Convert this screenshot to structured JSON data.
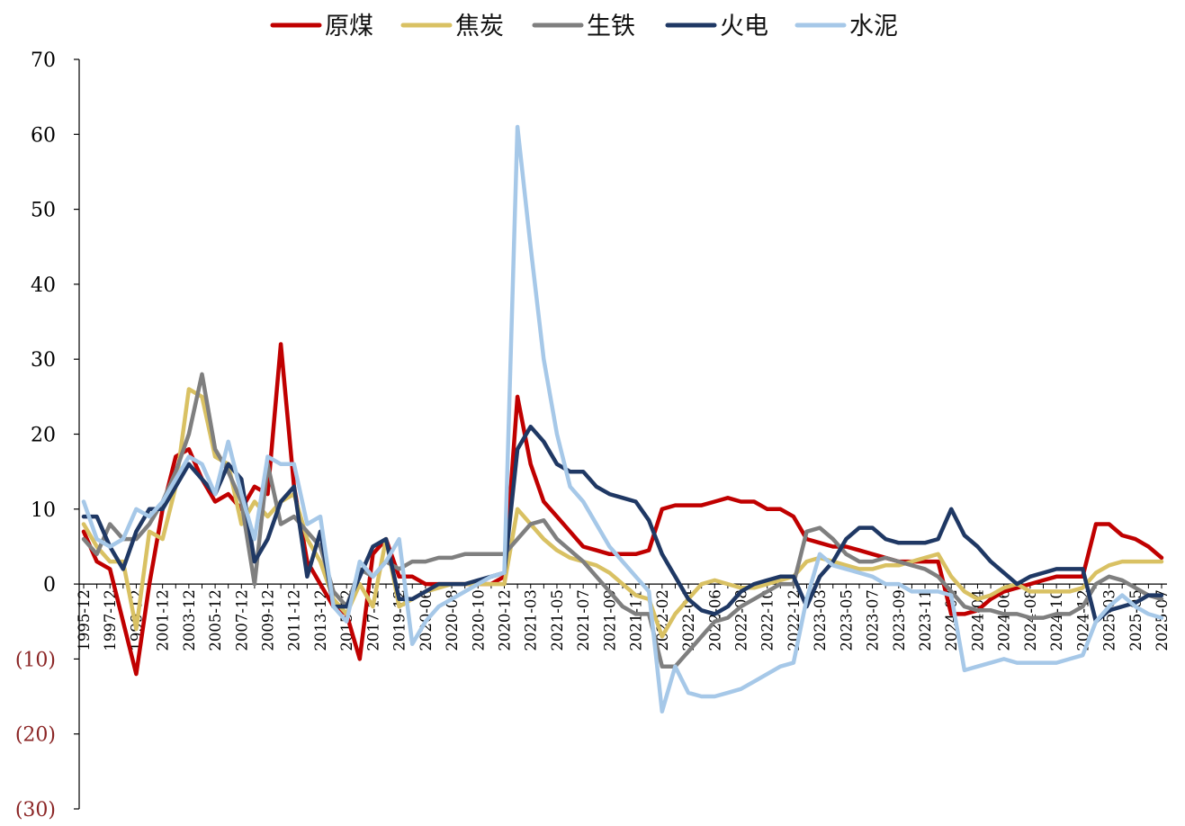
{
  "chart_data": {
    "type": "line",
    "title": "",
    "xlabel": "",
    "ylabel": "",
    "ylim": [
      -30,
      70
    ],
    "yticks": [
      70,
      60,
      50,
      40,
      30,
      20,
      10,
      0,
      -10,
      -20,
      -30
    ],
    "ytick_labels": [
      "70",
      "60",
      "50",
      "40",
      "30",
      "20",
      "10",
      "0",
      "(10)",
      "(20)",
      "(30)"
    ],
    "negative_label_color": "#8b2525",
    "grid": false,
    "legend_position": "top",
    "x": [
      "1995-12",
      "1996-12",
      "1997-12",
      "1998-12",
      "1999-12",
      "2000-12",
      "2001-12",
      "2002-12",
      "2003-12",
      "2004-12",
      "2005-12",
      "2006-12",
      "2007-12",
      "2008-12",
      "2009-12",
      "2010-12",
      "2011-12",
      "2012-12",
      "2013-12",
      "2014-12",
      "2015-12",
      "2016-12",
      "2017-12",
      "2018-12",
      "2019-12",
      "2020-04",
      "2020-06",
      "2020-07",
      "2020-08",
      "2020-09",
      "2020-10",
      "2020-11",
      "2020-12",
      "2021-01",
      "2021-03",
      "2021-04",
      "2021-05",
      "2021-06",
      "2021-07",
      "2021-08",
      "2021-09",
      "2021-10",
      "2021-11",
      "2021-12",
      "2022-02",
      "2022-03",
      "2022-04",
      "2022-05",
      "2022-06",
      "2022-07",
      "2022-08",
      "2022-09",
      "2022-10",
      "2022-11",
      "2022-12",
      "2023-02",
      "2023-03",
      "2023-04",
      "2023-05",
      "2023-06",
      "2023-07",
      "2023-08",
      "2023-09",
      "2023-10",
      "2023-11",
      "2023-12",
      "2024-02",
      "2024-03",
      "2024-04",
      "2024-05",
      "2024-06",
      "2024-07",
      "2024-08",
      "2024-09",
      "2024-10",
      "2024-11",
      "2024-12",
      "2025-02",
      "2025-03",
      "2025-04",
      "2025-05",
      "2025-06",
      "2025-07"
    ],
    "x_tick_labels": [
      "1995-12",
      "1997-12",
      "1999-12",
      "2001-12",
      "2003-12",
      "2005-12",
      "2007-12",
      "2009-12",
      "2011-12",
      "2013-12",
      "2015-12",
      "2017-12",
      "2019-12",
      "2020-06",
      "2020-08",
      "2020-10",
      "2020-12",
      "2021-03",
      "2021-05",
      "2021-07",
      "2021-09",
      "2021-11",
      "2022-02",
      "2022-04",
      "2022-06",
      "2022-08",
      "2022-10",
      "2022-12",
      "2023-03",
      "2023-05",
      "2023-07",
      "2023-09",
      "2023-11",
      "2024-02",
      "2024-04",
      "2024-06",
      "2024-08",
      "2024-10",
      "2024-12",
      "2025-03",
      "2025-05",
      "2025-07"
    ],
    "series": [
      {
        "name": "原煤",
        "color": "#c00000",
        "values": [
          7,
          3,
          2,
          -5,
          -12,
          0,
          10,
          17,
          18,
          14,
          11,
          12,
          10,
          13,
          12,
          32,
          13,
          3,
          0,
          -3,
          -4,
          -10,
          4,
          6,
          1,
          1,
          0,
          0,
          0,
          0,
          0,
          0,
          1,
          25,
          16,
          11,
          9,
          7,
          5,
          4.5,
          4,
          4,
          4,
          4.5,
          10,
          10.5,
          10.5,
          10.5,
          11,
          11.5,
          11,
          11,
          10,
          10,
          9,
          6,
          5.5,
          5,
          5,
          4.5,
          4,
          3.5,
          3,
          3,
          3,
          3,
          -4,
          -4,
          -3.5,
          -2,
          -1,
          -0.5,
          0,
          0.5,
          1,
          1,
          1,
          8,
          8,
          6.5,
          6,
          5,
          3.5
        ]
      },
      {
        "name": "焦炭",
        "color": "#d9c163",
        "values": [
          8,
          5,
          3,
          3,
          -6,
          7,
          6,
          13,
          26,
          25,
          17,
          16,
          8,
          11,
          9,
          11,
          12,
          6,
          3,
          -2,
          -4,
          0,
          -3,
          6,
          -3,
          -2,
          -1,
          -0.5,
          0,
          0,
          0,
          0,
          0,
          10,
          8,
          6,
          4.5,
          3.5,
          3,
          2.5,
          1.5,
          0,
          -1.5,
          -2,
          -7,
          -4,
          -2,
          0,
          0.5,
          0,
          -0.5,
          -0.5,
          0,
          0.5,
          1,
          3,
          3.5,
          3,
          2.5,
          2,
          2,
          2.5,
          2.5,
          3,
          3.5,
          4,
          1,
          -1,
          -2,
          -1.5,
          -0.5,
          0,
          -1,
          -1,
          -1,
          -1,
          -0.5,
          1.5,
          2.5,
          3,
          3,
          3,
          3
        ]
      },
      {
        "name": "生铁",
        "color": "#7f7f7f",
        "values": [
          6,
          4,
          8,
          6,
          6,
          8,
          11,
          15,
          20,
          28,
          18,
          15,
          11,
          0,
          16,
          8,
          9,
          7,
          5,
          -1,
          -3,
          2,
          1,
          3,
          2,
          3,
          3,
          3.5,
          3.5,
          4,
          4,
          4,
          4,
          6,
          8,
          8.5,
          6,
          4.5,
          3,
          1,
          -1,
          -3,
          -4,
          -4,
          -11,
          -11,
          -9,
          -7,
          -5,
          -4.5,
          -3,
          -2,
          -1,
          0,
          0,
          7,
          7.5,
          6,
          4,
          3,
          3,
          3.5,
          3,
          2.5,
          2,
          1,
          -1,
          -3,
          -3.5,
          -3.5,
          -4,
          -4,
          -4.5,
          -4.5,
          -4,
          -4,
          -3,
          0,
          1,
          0.5,
          -0.5,
          -1.5,
          -2
        ]
      },
      {
        "name": "火电",
        "color": "#1f3864",
        "values": [
          9,
          9,
          5,
          2,
          7,
          10,
          10,
          13,
          16,
          14,
          12,
          16,
          14,
          3,
          6,
          11,
          13,
          1,
          7,
          -3,
          -3,
          1,
          5,
          6,
          -2,
          -2,
          -1,
          0,
          0,
          0,
          0.5,
          1,
          1.5,
          18,
          21,
          19,
          16,
          15,
          15,
          13,
          12,
          11.5,
          11,
          8.5,
          4,
          1,
          -2,
          -3.5,
          -4,
          -3,
          -1,
          0,
          0.5,
          1,
          1,
          -3,
          1,
          3,
          6,
          7.5,
          7.5,
          6,
          5.5,
          5.5,
          5.5,
          6,
          10,
          6.5,
          5,
          3,
          1.5,
          0,
          1,
          1.5,
          2,
          2,
          2,
          -5,
          -3.5,
          -3,
          -2.5,
          -1.5,
          -1.5
        ]
      },
      {
        "name": "水泥",
        "color": "#a6c8e8",
        "values": [
          11,
          6,
          5,
          6,
          10,
          9,
          11,
          14,
          17,
          16,
          12,
          19,
          12,
          6,
          17,
          16,
          16,
          8,
          9,
          -3,
          -5,
          3,
          1,
          3,
          6,
          -8,
          -5,
          -3,
          -2,
          -1,
          0,
          1,
          1.5,
          61,
          45,
          30,
          20,
          13,
          11,
          8,
          5,
          3,
          1,
          -1,
          -17,
          -11,
          -14.5,
          -15,
          -15,
          -14.5,
          -14,
          -13,
          -12,
          -11,
          -10.5,
          -2,
          4,
          2.5,
          2,
          1.5,
          1,
          0,
          0,
          -1,
          -1,
          -1,
          -1.5,
          -11.5,
          -11,
          -10.5,
          -10,
          -10.5,
          -10.5,
          -10.5,
          -10.5,
          -10,
          -9.5,
          -5,
          -3,
          -1.5,
          -3,
          -4,
          -4.5
        ]
      }
    ]
  }
}
